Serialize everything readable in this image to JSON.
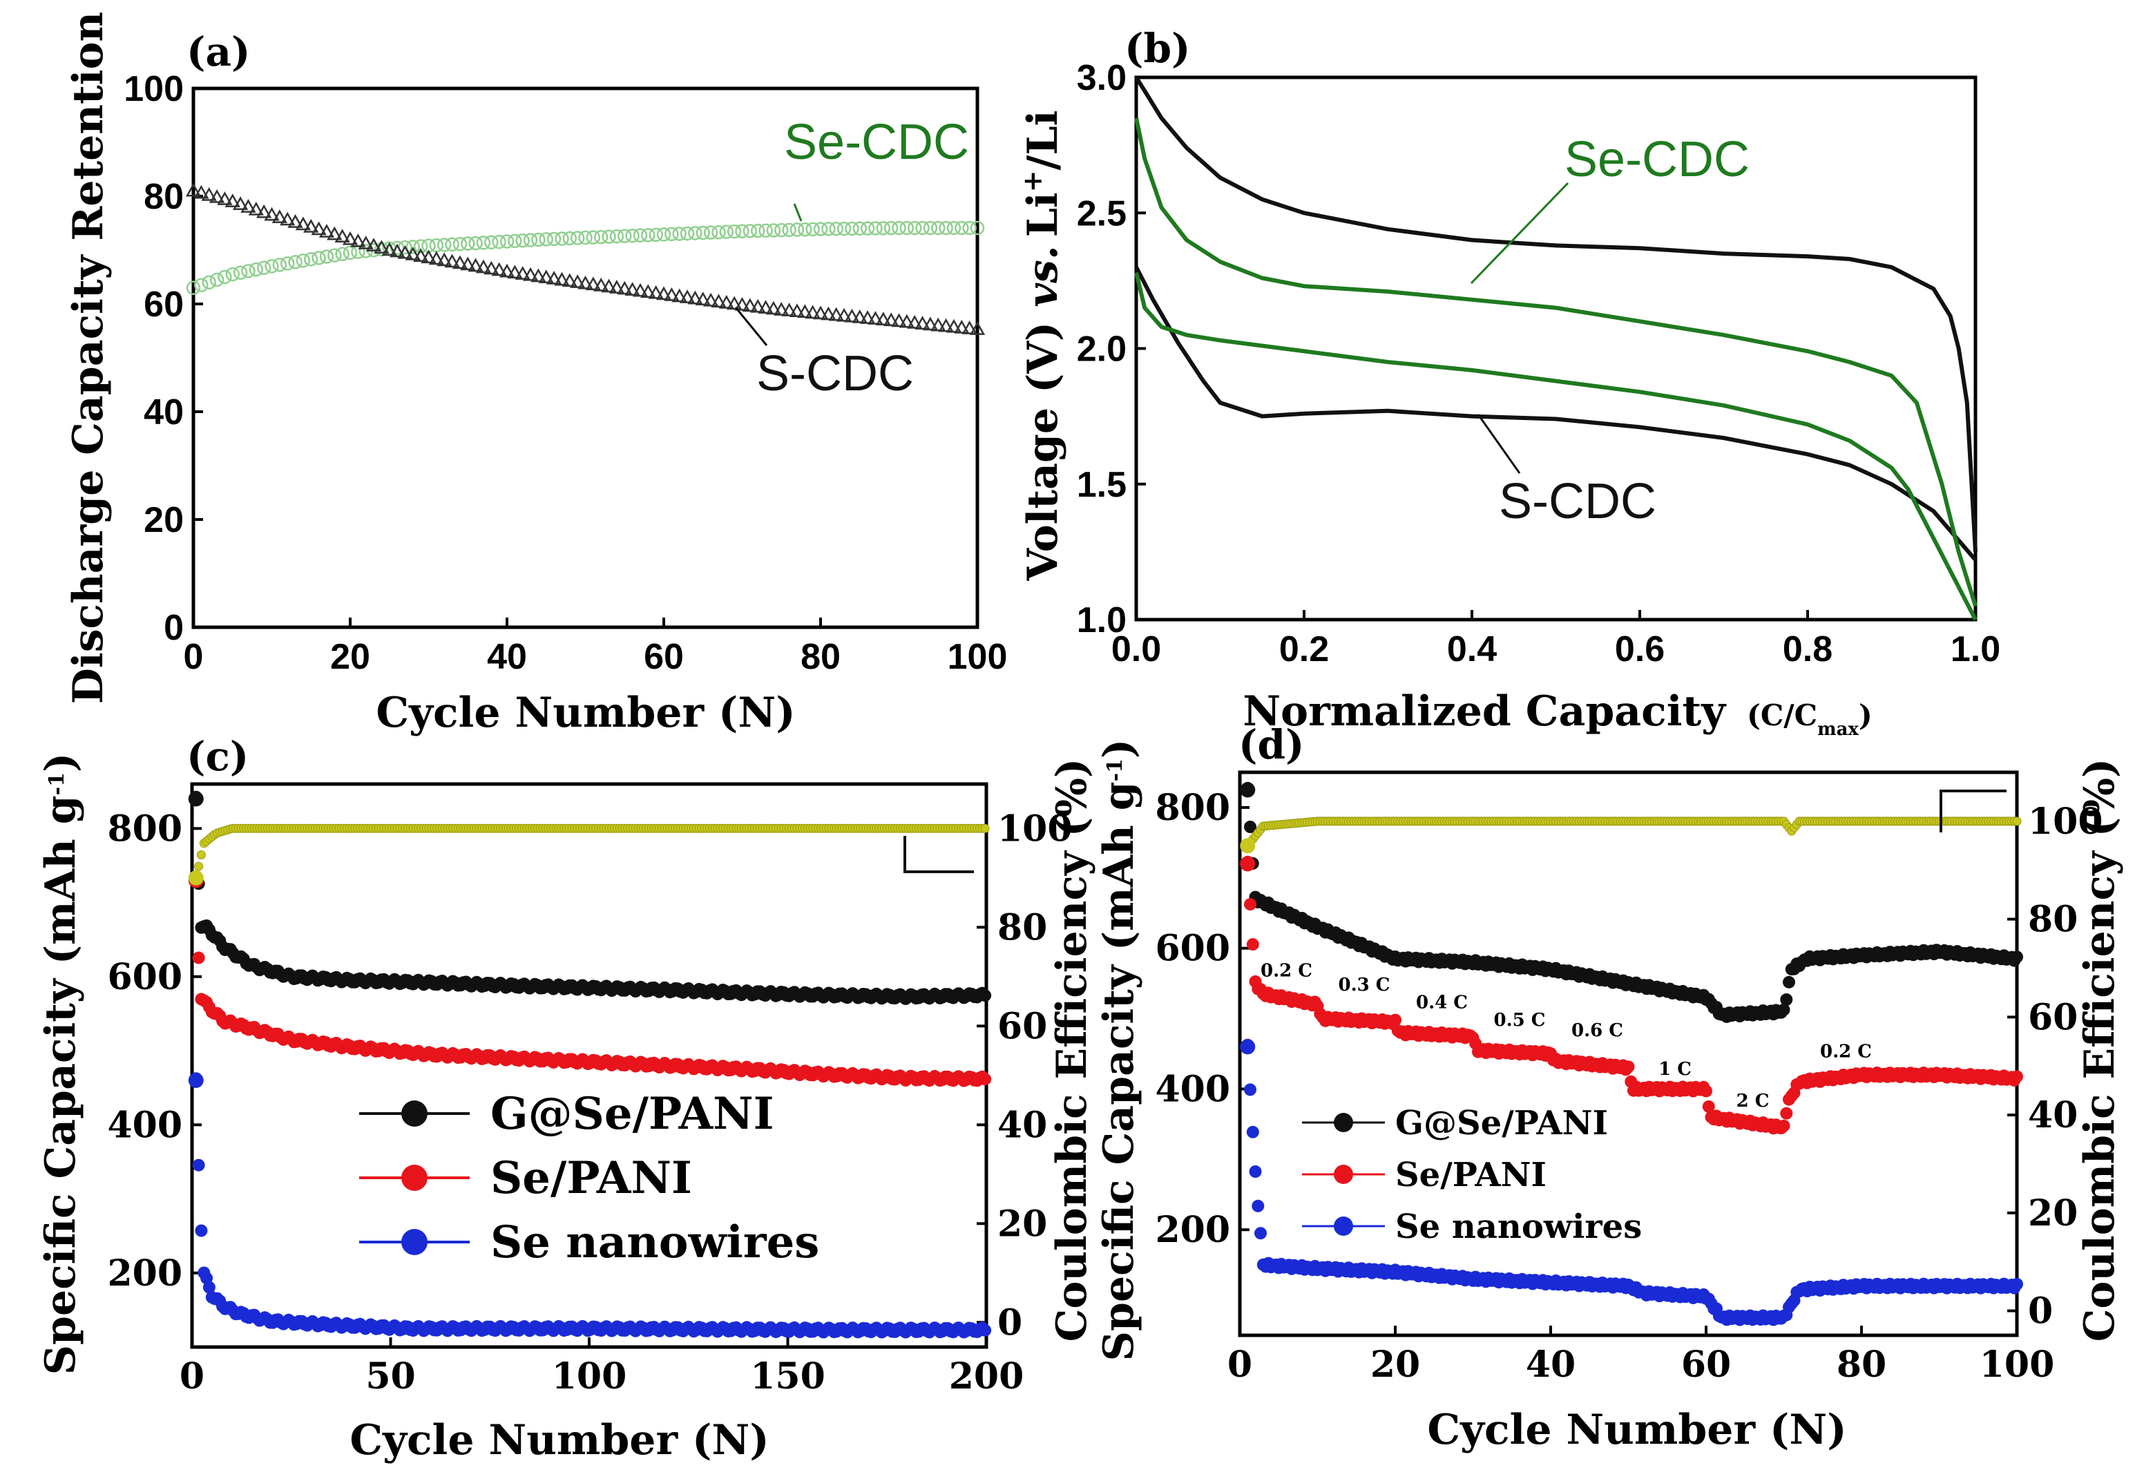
{
  "chart_data": [
    {
      "id": "a",
      "panel_label": "(a)",
      "type": "scatter",
      "xlabel": "Cycle Number (N)",
      "ylabel": "Discharge Capacity Retention",
      "xlim": [
        0,
        100
      ],
      "ylim": [
        0,
        100
      ],
      "xticks": [
        0,
        20,
        40,
        60,
        80,
        100
      ],
      "yticks": [
        0,
        20,
        40,
        60,
        80,
        100
      ],
      "series": [
        {
          "name": "Se-CDC",
          "color": "#1f7a1f",
          "marker": "open-circle",
          "x": [
            0,
            5,
            10,
            15,
            20,
            25,
            30,
            35,
            40,
            45,
            50,
            55,
            60,
            65,
            70,
            75,
            80,
            85,
            90,
            95,
            100
          ],
          "y": [
            63,
            65.5,
            67,
            68.3,
            69.5,
            70.3,
            70.8,
            71.2,
            71.6,
            72,
            72.3,
            72.6,
            72.9,
            73.2,
            73.5,
            73.7,
            73.9,
            74,
            74.1,
            74.1,
            74.1
          ]
        },
        {
          "name": "S-CDC",
          "color": "#111111",
          "marker": "open-triangle",
          "x": [
            0,
            5,
            10,
            15,
            20,
            25,
            30,
            35,
            40,
            45,
            50,
            55,
            60,
            65,
            70,
            75,
            80,
            85,
            90,
            95,
            100
          ],
          "y": [
            81,
            79,
            76.5,
            74.3,
            72,
            70,
            68.6,
            67.3,
            66,
            64.9,
            63.8,
            62.8,
            61.8,
            60.8,
            59.8,
            58.9,
            58.2,
            57.5,
            56.8,
            56,
            55.3
          ]
        }
      ],
      "annotations": [
        {
          "text": "Se-CDC",
          "color": "#1f7a1f"
        },
        {
          "text": "S-CDC",
          "color": "#111111"
        }
      ]
    },
    {
      "id": "b",
      "panel_label": "(b)",
      "type": "line",
      "xlabel_main": "Normalized Capacity",
      "xlabel_unit": "(C/C",
      "xlabel_sub": "max",
      "xlabel_close": ")",
      "ylabel_pre": "Voltage (V) ",
      "ylabel_vs": "vs.",
      "ylabel_li": "Li",
      "ylabel_plus": "+",
      "ylabel_post": "/Li",
      "xlim": [
        0,
        1
      ],
      "ylim": [
        1,
        3
      ],
      "xticks": [
        "0.0",
        "0.2",
        "0.4",
        "0.6",
        "0.8",
        "1.0"
      ],
      "yticks": [
        "1.0",
        "1.5",
        "2.0",
        "2.5",
        "3.0"
      ],
      "series": [
        {
          "name": "S-CDC charge",
          "color": "#111111",
          "x": [
            0,
            0.01,
            0.03,
            0.06,
            0.1,
            0.15,
            0.2,
            0.3,
            0.4,
            0.5,
            0.6,
            0.7,
            0.8,
            0.85,
            0.9,
            0.95,
            0.97,
            0.98,
            0.99,
            1.0
          ],
          "y": [
            3.0,
            2.95,
            2.85,
            2.74,
            2.63,
            2.55,
            2.5,
            2.44,
            2.4,
            2.38,
            2.37,
            2.35,
            2.34,
            2.33,
            2.3,
            2.22,
            2.12,
            2.0,
            1.8,
            1.25
          ]
        },
        {
          "name": "S-CDC discharge",
          "color": "#111111",
          "x": [
            0,
            0.02,
            0.05,
            0.08,
            0.1,
            0.15,
            0.2,
            0.3,
            0.4,
            0.5,
            0.6,
            0.7,
            0.8,
            0.85,
            0.9,
            0.95,
            1.0
          ],
          "y": [
            2.3,
            2.18,
            2.02,
            1.88,
            1.8,
            1.75,
            1.76,
            1.77,
            1.75,
            1.74,
            1.71,
            1.67,
            1.61,
            1.57,
            1.5,
            1.4,
            1.22
          ]
        },
        {
          "name": "Se-CDC charge",
          "color": "#1f7a1f",
          "x": [
            0,
            0.01,
            0.03,
            0.06,
            0.1,
            0.15,
            0.2,
            0.3,
            0.4,
            0.5,
            0.6,
            0.7,
            0.8,
            0.85,
            0.9,
            0.93,
            0.96,
            0.98,
            1.0
          ],
          "y": [
            2.85,
            2.7,
            2.52,
            2.4,
            2.32,
            2.26,
            2.23,
            2.21,
            2.18,
            2.15,
            2.1,
            2.05,
            1.99,
            1.95,
            1.9,
            1.8,
            1.5,
            1.25,
            1.05
          ]
        },
        {
          "name": "Se-CDC discharge",
          "color": "#1f7a1f",
          "x": [
            0,
            0.01,
            0.03,
            0.06,
            0.1,
            0.2,
            0.3,
            0.4,
            0.5,
            0.6,
            0.7,
            0.8,
            0.85,
            0.9,
            0.92,
            0.95,
            0.97,
            1.0
          ],
          "y": [
            2.28,
            2.15,
            2.08,
            2.05,
            2.03,
            1.99,
            1.95,
            1.92,
            1.88,
            1.84,
            1.79,
            1.72,
            1.66,
            1.56,
            1.48,
            1.3,
            1.18,
            1.0
          ]
        }
      ],
      "annotations": [
        {
          "text": "Se-CDC",
          "color": "#1f7a1f"
        },
        {
          "text": "S-CDC",
          "color": "#111111"
        }
      ]
    },
    {
      "id": "c",
      "panel_label": "(c)",
      "type": "scatter",
      "xlabel": "Cycle Number (N)",
      "ylabel_left": "Specific Capacity (mAh g",
      "ylabel_left_sup": "-1",
      "ylabel_left_close": ")",
      "ylabel_right": "Coulombic Efficiency (%)",
      "xlim": [
        0,
        200
      ],
      "ylim_left": [
        100,
        860
      ],
      "ylim_right": [
        -5,
        109
      ],
      "xticks": [
        0,
        50,
        100,
        150,
        200
      ],
      "yticks_left": [
        200,
        400,
        600,
        800
      ],
      "yticks_right": [
        0,
        20,
        40,
        60,
        80,
        100
      ],
      "series": [
        {
          "name": "G@Se/PANI",
          "color": "#111111",
          "axis": "left",
          "x": [
            1,
            2,
            4,
            8,
            15,
            25,
            40,
            60,
            80,
            100,
            120,
            140,
            160,
            180,
            200
          ],
          "y": [
            840,
            670,
            665,
            640,
            615,
            600,
            595,
            592,
            588,
            585,
            582,
            578,
            575,
            573,
            575
          ]
        },
        {
          "name": "Se/PANI",
          "color": "#e8141b",
          "axis": "left",
          "x": [
            1,
            2,
            4,
            8,
            15,
            25,
            40,
            60,
            80,
            100,
            120,
            140,
            160,
            180,
            200
          ],
          "y": [
            730,
            575,
            560,
            540,
            530,
            515,
            505,
            495,
            490,
            485,
            480,
            475,
            468,
            463,
            462
          ]
        },
        {
          "name": "Se nanowires",
          "color": "#1a2bd6",
          "axis": "left",
          "x": [
            1,
            2,
            3,
            5,
            8,
            12,
            20,
            35,
            55,
            80,
            100,
            130,
            160,
            200
          ],
          "y": [
            460,
            290,
            200,
            170,
            155,
            145,
            135,
            130,
            125,
            125,
            125,
            124,
            123,
            123
          ]
        },
        {
          "name": "Coulombic Efficiency",
          "color": "#c8c81e",
          "axis": "right",
          "x": [
            1,
            3,
            6,
            10,
            20,
            50,
            100,
            150,
            200
          ],
          "y": [
            90,
            97,
            99,
            100,
            100,
            100,
            100,
            100,
            100
          ]
        }
      ],
      "legend": [
        "G@Se/PANI",
        "Se/PANI",
        "Se nanowires"
      ]
    },
    {
      "id": "d",
      "panel_label": "(d)",
      "type": "scatter",
      "xlabel": "Cycle Number (N)",
      "ylabel_left": "Specific Capacity (mAh g",
      "ylabel_left_sup": "-1",
      "ylabel_left_close": ")",
      "ylabel_right": "Coulombic Efficiency (%)",
      "xlim": [
        0,
        100
      ],
      "ylim_left": [
        50,
        850
      ],
      "ylim_right": [
        -5,
        110
      ],
      "xticks": [
        0,
        20,
        40,
        60,
        80,
        100
      ],
      "yticks_left": [
        200,
        400,
        600,
        800
      ],
      "yticks_right": [
        0,
        20,
        40,
        60,
        80,
        100
      ],
      "series": [
        {
          "name": "G@Se/PANI",
          "color": "#111111",
          "axis": "left",
          "x": [
            1,
            2,
            3,
            10,
            20,
            30,
            40,
            50,
            60,
            62,
            70,
            71,
            73,
            80,
            90,
            100
          ],
          "y": [
            825,
            670,
            665,
            630,
            585,
            580,
            570,
            550,
            530,
            505,
            510,
            570,
            585,
            590,
            595,
            585
          ]
        },
        {
          "name": "Se/PANI",
          "color": "#e8141b",
          "axis": "left",
          "x": [
            1,
            2,
            3,
            10,
            10.5,
            20,
            20.5,
            30,
            30.5,
            40,
            40.5,
            50,
            50.5,
            60,
            60.5,
            70,
            70.5,
            72,
            80,
            90,
            100
          ],
          "y": [
            720,
            550,
            535,
            520,
            500,
            495,
            480,
            475,
            455,
            450,
            440,
            430,
            400,
            400,
            360,
            345,
            380,
            410,
            420,
            420,
            415
          ]
        },
        {
          "name": "Se nanowires",
          "color": "#1a2bd6",
          "axis": "left",
          "x": [
            1,
            2,
            3,
            10,
            20,
            30,
            40,
            50,
            52,
            60,
            62,
            70,
            72,
            80,
            90,
            100
          ],
          "y": [
            460,
            280,
            150,
            145,
            140,
            130,
            125,
            120,
            110,
            105,
            75,
            75,
            115,
            120,
            120,
            120
          ]
        },
        {
          "name": "Coulombic Efficiency",
          "color": "#c8c81e",
          "axis": "right",
          "x": [
            1,
            3,
            10,
            20,
            30,
            40,
            50,
            60,
            70,
            71,
            72,
            80,
            90,
            100
          ],
          "y": [
            95,
            99,
            100,
            100,
            100,
            100,
            100,
            100,
            100,
            98,
            100,
            100,
            100,
            100
          ]
        }
      ],
      "rate_labels": [
        "0.2 C",
        "0.3 C",
        "0.4 C",
        "0.5 C",
        "0.6 C",
        "1 C",
        "2 C",
        "0.2 C"
      ],
      "legend": [
        "G@Se/PANI",
        "Se/PANI",
        "Se nanowires"
      ]
    }
  ]
}
